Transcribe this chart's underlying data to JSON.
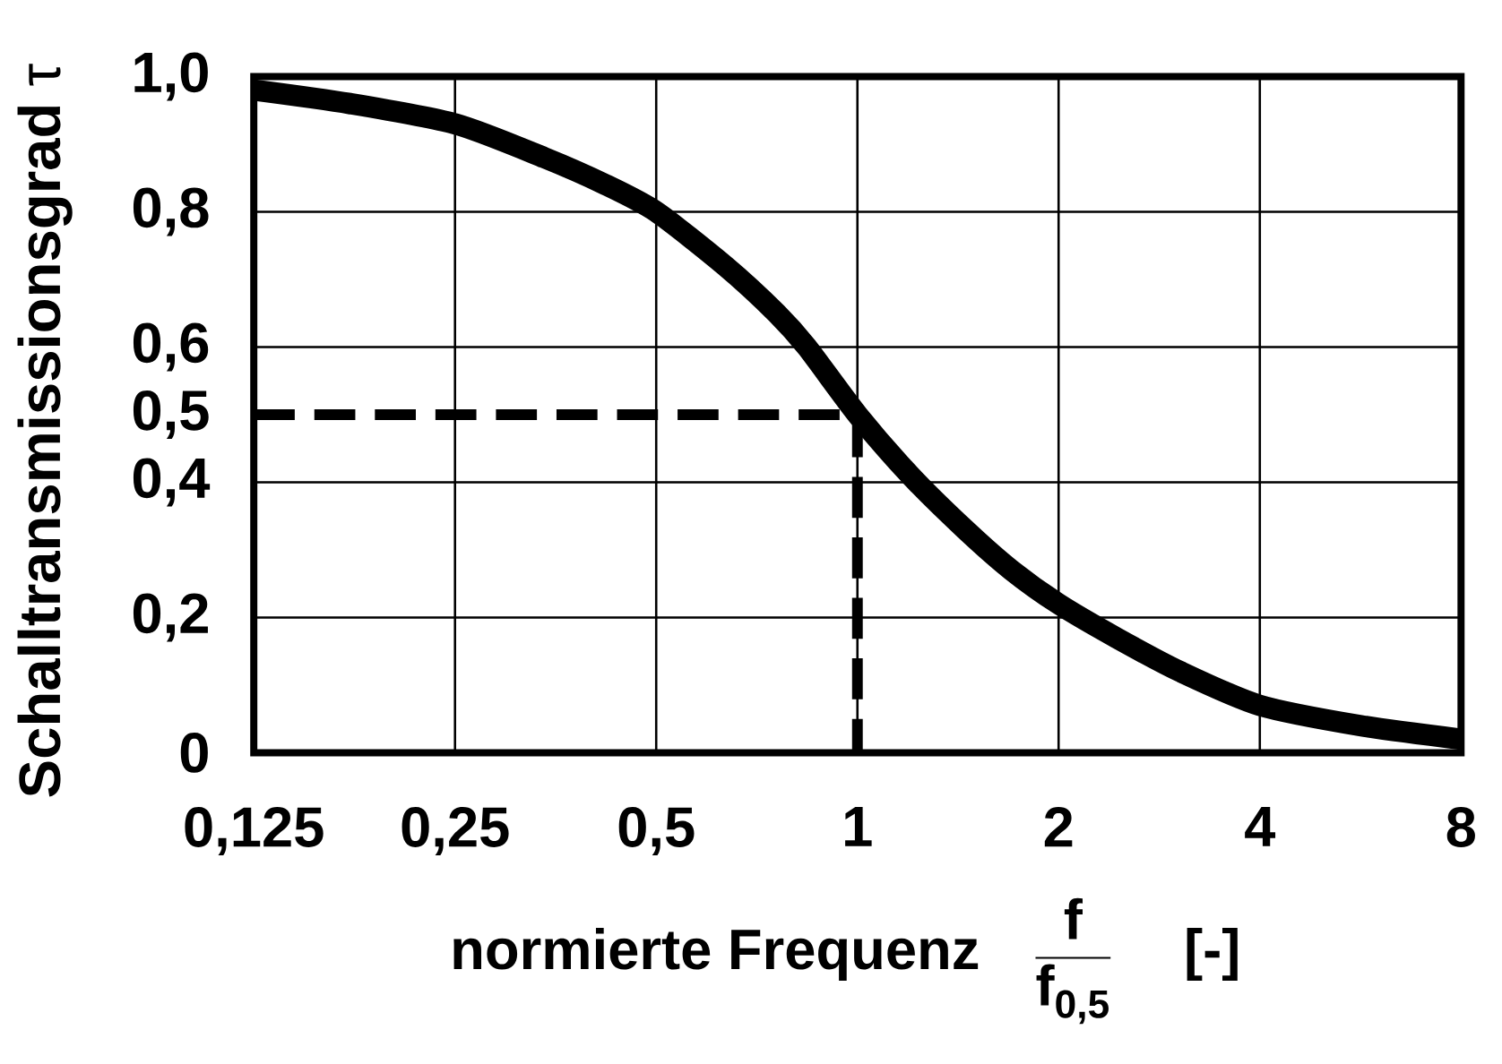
{
  "chart_data": {
    "type": "line",
    "xlabel": "normierte Frequenz",
    "ylabel": "**Schalltransmissionsgrad** τ",
    "annotations": [
      "\\frac{\\textbf{f}}{\\textbf{f}_{\\textbf{0,5}}}",
      "[-]"
    ],
    "series": [
      {
        "color": "#000000",
        "x": [
          0.125,
          0.174,
          0.25,
          0.34,
          0.42,
          0.5,
          0.634,
          0.757,
          0.84,
          1,
          1.2,
          1.45,
          1.7,
          2,
          2.44,
          3.04,
          4,
          5.66,
          8
        ],
        "values": [
          0.98,
          0.96,
          0.93,
          0.88,
          0.84,
          0.8,
          0.72,
          0.65,
          0.6,
          0.5,
          0.41,
          0.33,
          0.27,
          0.22,
          0.17,
          0.12,
          0.07,
          0.04,
          0.02
        ]
      },
      {
        "color": "#000000",
        "line_style": "dashed",
        "x": [
          0.125,
          1,
          1
        ],
        "values": [
          0.5,
          0.5,
          0
        ]
      }
    ],
    "xlim": [
      0.125,
      8
    ],
    "ylim": [
      0,
      1
    ],
    "xticks": [
      {
        "value": 0.125,
        "label": "0,125"
      },
      {
        "value": 0.25,
        "label": "0,25"
      },
      {
        "value": 0.5,
        "label": "0,5"
      },
      1,
      2,
      4,
      8
    ],
    "yticks": [
      0,
      {
        "value": 0.2,
        "label": "0,2"
      },
      {
        "value": 0.4,
        "label": "0,4"
      },
      {
        "value": 0.5,
        "label": "0,5"
      },
      {
        "value": 0.6,
        "label": "0,6"
      },
      {
        "value": 0.8,
        "label": "0,8"
      },
      {
        "value": 1.0,
        "label": "1,0"
      }
    ],
    "log": "x",
    "grid": true
  }
}
